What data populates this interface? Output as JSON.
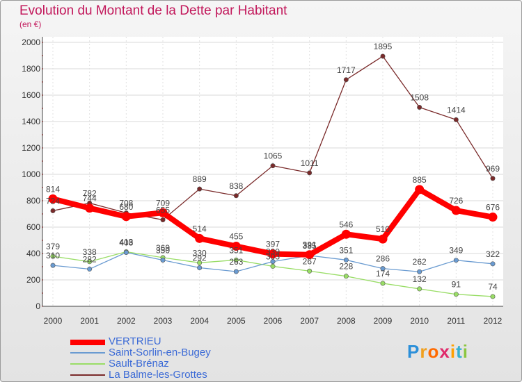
{
  "header": {
    "title": "Evolution du Montant de la Dette par Habitant",
    "subtitle": "(en €)"
  },
  "logo": {
    "text": "Proxiti",
    "colors": [
      "#2b8fd9",
      "#f0a020",
      "#ff6a00",
      "#e02a6a",
      "#ffa000",
      "#35b0d0",
      "#8cc63f"
    ]
  },
  "chart_data": {
    "type": "line",
    "x": [
      2000,
      2001,
      2002,
      2003,
      2004,
      2005,
      2006,
      2007,
      2008,
      2009,
      2010,
      2011,
      2012
    ],
    "ylim": [
      0,
      2000
    ],
    "yticks": [
      0,
      200,
      400,
      600,
      800,
      1000,
      1200,
      1400,
      1600,
      1800,
      2000
    ],
    "grid": true,
    "legend_position": "bottom-left",
    "series": [
      {
        "name": "VERTRIEU",
        "color": "#ff0000",
        "values": [
          814,
          744,
          680,
          709,
          514,
          455,
          397,
          391,
          546,
          510,
          885,
          726,
          676
        ],
        "labels": [
          "814",
          "744",
          "680",
          "709",
          "514",
          "455",
          "397",
          "391",
          "546",
          "510",
          "885",
          "726",
          "676"
        ]
      },
      {
        "name": "Saint-Sorlin-en-Bugey",
        "color": "#6a9bd1",
        "values": [
          310,
          282,
          408,
          350,
          292,
          263,
          339,
          385,
          351,
          286,
          262,
          349,
          322
        ],
        "labels": [
          "310",
          "282",
          "408",
          "350",
          "292",
          "263",
          "339",
          "385",
          "351",
          "286",
          "262",
          "349",
          "322"
        ]
      },
      {
        "name": "Sault-Brénaz",
        "color": "#99dd66",
        "values": [
          379,
          338,
          413,
          369,
          330,
          351,
          303,
          267,
          228,
          174,
          132,
          91,
          74
        ],
        "labels": [
          "379",
          "338",
          "413",
          "369",
          "330",
          "351",
          "303",
          "267",
          "228",
          "174",
          "132",
          "91",
          "74"
        ]
      },
      {
        "name": "La Balme-les-Grottes",
        "color": "#7a2a2a",
        "values": [
          724,
          782,
          708,
          655,
          889,
          838,
          1065,
          1011,
          1717,
          1895,
          1508,
          1414,
          969
        ],
        "labels": [
          "724",
          "782",
          "708",
          "655",
          "889",
          "838",
          "1065",
          "1011",
          "1717",
          "1895",
          "1508",
          "1414",
          "969"
        ]
      }
    ]
  }
}
